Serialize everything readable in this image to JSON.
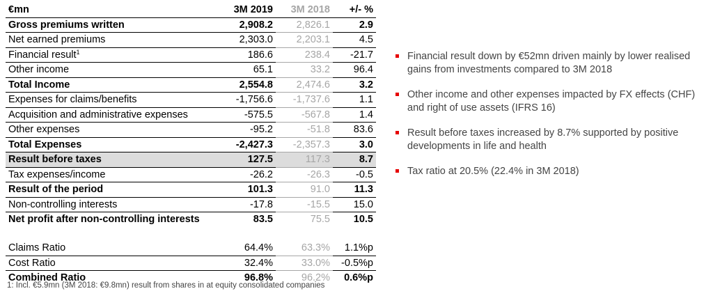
{
  "table": {
    "headers": {
      "label": "€mn",
      "current": "3M 2019",
      "previous": "3M 2018",
      "change": "+/- %"
    },
    "rows": [
      {
        "label": "Gross premiums written",
        "current": "2,908.2",
        "previous": "2,826.1",
        "change": "2.9",
        "bold": true
      },
      {
        "label": "Net earned premiums",
        "current": "2,303.0",
        "previous": "2,203.1",
        "change": "4.5"
      },
      {
        "label": "Financial result",
        "sup": "1",
        "current": "186.6",
        "previous": "238.4",
        "change": "-21.7"
      },
      {
        "label": "Other income",
        "current": "65.1",
        "previous": "33.2",
        "change": "96.4"
      },
      {
        "label": "Total Income",
        "current": "2,554.8",
        "previous": "2,474.6",
        "change": "3.2",
        "bold": true
      },
      {
        "label": "Expenses for claims/benefits",
        "current": "-1,756.6",
        "previous": "-1,737.6",
        "change": "1.1"
      },
      {
        "label": "Acquisition and administrative expenses",
        "current": "-575.5",
        "previous": "-567.8",
        "change": "1.4"
      },
      {
        "label": "Other expenses",
        "current": "-95.2",
        "previous": "-51.8",
        "change": "83.6"
      },
      {
        "label": "Total Expenses",
        "current": "-2,427.3",
        "previous": "-2,357.3",
        "change": "3.0",
        "bold": true
      },
      {
        "label": "Result before taxes",
        "current": "127.5",
        "previous": "117.3",
        "change": "8.7",
        "bold": true,
        "shaded": true
      },
      {
        "label": "Tax expenses/income",
        "current": "-26.2",
        "previous": "-26.3",
        "change": "-0.5"
      },
      {
        "label": "Result of the period",
        "current": "101.3",
        "previous": "91.0",
        "change": "11.3",
        "bold": true
      },
      {
        "label": "Non-controlling interests",
        "current": "-17.8",
        "previous": "-15.5",
        "change": "15.0"
      },
      {
        "label": "Net profit after non-controlling interests",
        "current": "83.5",
        "previous": "75.5",
        "change": "10.5",
        "bold": true,
        "noBorder": true
      }
    ],
    "ratios": [
      {
        "label": "Claims Ratio",
        "current": "64.4%",
        "previous": "63.3%",
        "change": "1.1%p"
      },
      {
        "label": "Cost Ratio",
        "current": "32.4%",
        "previous": "33.0%",
        "change": "-0.5%p"
      },
      {
        "label": "Combined Ratio",
        "current": "96.8%",
        "previous": "96.2%",
        "change": "0.6%p",
        "bold": true,
        "noBorder": true
      }
    ]
  },
  "footnote": "1: Incl. €5.9mn (3M 2018: €9.8mn) result from shares in at equity consolidated companies",
  "bullets": [
    "Financial result down by €52mn driven mainly by lower realised gains from investments compared to 3M 2018",
    "Other income and other expenses impacted by FX effects (CHF) and right of use assets (IFRS 16)",
    "Result before taxes increased by 8.7% supported by positive developments in life and health",
    "Tax ratio at 20.5% (22.4% in 3M 2018)"
  ],
  "colors": {
    "accent": "#e60000",
    "muted": "#a6a6a6",
    "shade": "#dcdcdc"
  }
}
